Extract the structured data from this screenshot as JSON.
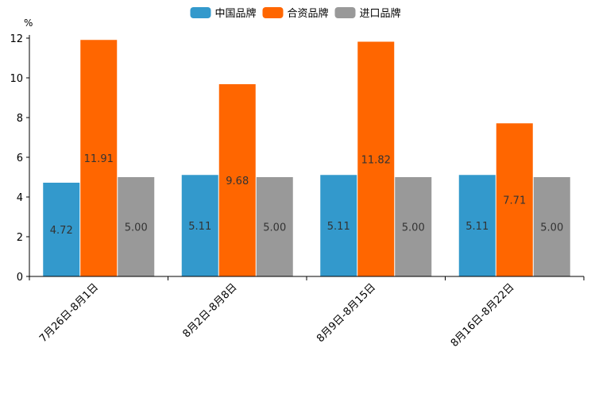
{
  "chart_data": {
    "type": "bar",
    "title": "",
    "xlabel": "",
    "ylabel": "%",
    "ylim": [
      0,
      12
    ],
    "yticks": [
      0,
      2,
      4,
      6,
      8,
      10,
      12
    ],
    "grid": false,
    "legend_position": "top-center",
    "categories": [
      "7月26日-8月1日",
      "8月2日-8月8日",
      "8月9日-8月15日",
      "8月16日-8月22日"
    ],
    "series": [
      {
        "name": "中国品牌",
        "color": "#3399cc",
        "values": [
          4.72,
          5.11,
          5.11,
          5.11
        ],
        "labels": [
          "4.72",
          "5.11",
          "5.11",
          "5.11"
        ]
      },
      {
        "name": "合资品牌",
        "color": "#ff6600",
        "values": [
          11.91,
          9.68,
          11.82,
          7.71
        ],
        "labels": [
          "11.91",
          "9.68",
          "11.82",
          "7.71"
        ]
      },
      {
        "name": "进口品牌",
        "color": "#999999",
        "values": [
          5.0,
          5.0,
          5.0,
          5.0
        ],
        "labels": [
          "5.00",
          "5.00",
          "5.00",
          "5.00"
        ]
      }
    ]
  }
}
